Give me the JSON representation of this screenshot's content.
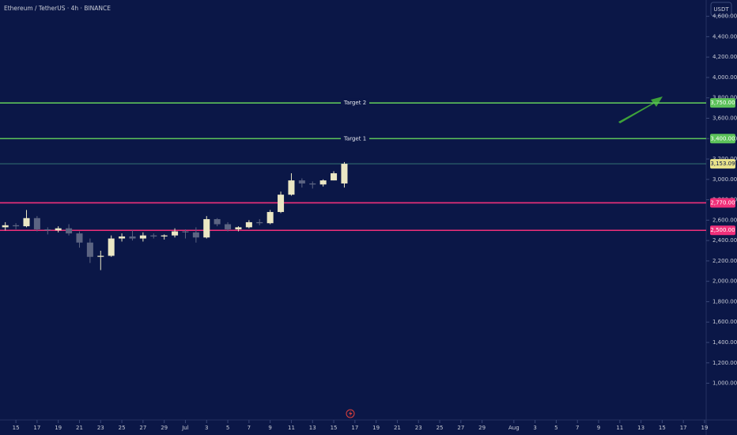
{
  "chart_data": {
    "type": "candlestick",
    "title": "Ethereum / TetherUS · 4h · BINANCE",
    "currency": "USDT",
    "x": [
      14,
      15,
      16,
      17,
      18,
      19,
      20,
      21,
      22,
      23,
      24,
      25,
      26,
      27,
      28,
      29,
      30,
      31,
      32,
      33,
      34,
      35,
      36,
      37,
      38,
      39,
      40,
      41,
      42,
      43,
      44,
      45,
      46
    ],
    "open": [
      2530,
      2550,
      2540,
      2620,
      2510,
      2500,
      2520,
      2470,
      2380,
      2240,
      2250,
      2420,
      2440,
      2420,
      2450,
      2440,
      2450,
      2490,
      2480,
      2430,
      2610,
      2560,
      2510,
      2530,
      2580,
      2570,
      2680,
      2850,
      2990,
      2960,
      2950,
      2990,
      2960
    ],
    "high": [
      2580,
      2570,
      2700,
      2640,
      2530,
      2540,
      2560,
      2490,
      2420,
      2300,
      2450,
      2470,
      2500,
      2480,
      2470,
      2460,
      2520,
      2510,
      2530,
      2640,
      2620,
      2580,
      2540,
      2600,
      2610,
      2700,
      2880,
      3060,
      3010,
      2980,
      3000,
      3080,
      3170
    ],
    "low": [
      2500,
      2510,
      2530,
      2490,
      2460,
      2480,
      2450,
      2330,
      2180,
      2110,
      2240,
      2390,
      2400,
      2390,
      2420,
      2410,
      2430,
      2420,
      2380,
      2420,
      2540,
      2490,
      2490,
      2520,
      2550,
      2560,
      2670,
      2840,
      2920,
      2910,
      2930,
      2990,
      2920
    ],
    "close": [
      2550,
      2540,
      2620,
      2510,
      2500,
      2520,
      2470,
      2380,
      2240,
      2250,
      2420,
      2440,
      2420,
      2450,
      2440,
      2450,
      2490,
      2480,
      2430,
      2610,
      2560,
      2510,
      2530,
      2580,
      2570,
      2680,
      2850,
      2990,
      2960,
      2950,
      2990,
      3060,
      3153.09
    ],
    "up_color": "#ebe7c4",
    "down_color": "#5c6482",
    "xlim": [
      13.5,
      80.15
    ],
    "xticks": [
      15,
      17,
      19,
      21,
      23,
      25,
      27,
      29,
      {
        "value": 31,
        "label": "Jul"
      },
      {
        "value": 33,
        "label": "3"
      },
      {
        "value": 35,
        "label": "5"
      },
      {
        "value": 37,
        "label": "7"
      },
      {
        "value": 39,
        "label": "9"
      },
      {
        "value": 41,
        "label": "11"
      },
      {
        "value": 43,
        "label": "13"
      },
      {
        "value": 45,
        "label": "15"
      },
      {
        "value": 47,
        "label": "17"
      },
      {
        "value": 49,
        "label": "19"
      },
      {
        "value": 51,
        "label": "21"
      },
      {
        "value": 53,
        "label": "23"
      },
      {
        "value": 55,
        "label": "25"
      },
      {
        "value": 57,
        "label": "27"
      },
      {
        "value": 59,
        "label": "29"
      },
      {
        "value": 62,
        "label": "Aug"
      },
      {
        "value": 64,
        "label": "3"
      },
      {
        "value": 66,
        "label": "5"
      },
      {
        "value": 68,
        "label": "7"
      },
      {
        "value": 70,
        "label": "9"
      },
      {
        "value": 72,
        "label": "11"
      },
      {
        "value": 74,
        "label": "13"
      },
      {
        "value": 76,
        "label": "15"
      },
      {
        "value": 78,
        "label": "17"
      },
      {
        "value": 80,
        "label": "19"
      }
    ],
    "ylim": [
      639.5,
      4760
    ],
    "yticks": [
      {
        "value": 1000,
        "label": "1,000.00"
      },
      {
        "value": 1200,
        "label": "1,200.00"
      },
      {
        "value": 1400,
        "label": "1,400.00"
      },
      {
        "value": 1600,
        "label": "1,600.00"
      },
      {
        "value": 1800,
        "label": "1,800.00"
      },
      {
        "value": 2000,
        "label": "2,000.00"
      },
      {
        "value": 2200,
        "label": "2,200.00"
      },
      {
        "value": 2400,
        "label": "2,400.00"
      },
      {
        "value": 2600,
        "label": "2,600.00"
      },
      {
        "value": 2800,
        "label": "2,800.00"
      },
      {
        "value": 3000,
        "label": "3,000.00"
      },
      {
        "value": 3200,
        "label": "3,200.00"
      },
      {
        "value": 3400,
        "label": "3,400.00"
      },
      {
        "value": 3600,
        "label": "3,600.00"
      },
      {
        "value": 3800,
        "label": "3,800.00"
      },
      {
        "value": 4000,
        "label": "4,000.00"
      },
      {
        "value": 4200,
        "label": "4,200.00"
      },
      {
        "value": 4400,
        "label": "4,400.00"
      },
      {
        "value": 4600,
        "label": "4,600.00"
      }
    ],
    "levels": [
      {
        "name": "Target 2",
        "value": 3750,
        "label": "3,750.00",
        "color": "#5cc25a"
      },
      {
        "name": "Target 1",
        "value": 3400,
        "label": "3,400.00",
        "color": "#5cc25a"
      },
      {
        "value": 2770,
        "label": "2,770.00",
        "color": "#f0307a"
      },
      {
        "value": 2500,
        "label": "2,500.00",
        "color": "#f0307a"
      }
    ],
    "last_price": {
      "value": 3153.09,
      "label": "3,153.09",
      "color": "#e9e38a",
      "line_color": "#3a7f7a"
    }
  }
}
